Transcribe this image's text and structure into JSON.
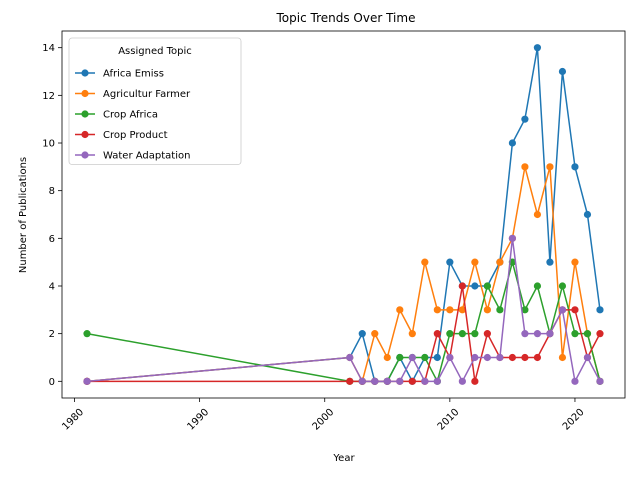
{
  "chart_data": {
    "type": "line",
    "title": "Topic Trends Over Time",
    "xlabel": "Year",
    "ylabel": "Number of Publications",
    "xlim": [
      1979,
      2024
    ],
    "ylim": [
      -0.7,
      14.7
    ],
    "xticks": [
      1980,
      1990,
      2000,
      2010,
      2020
    ],
    "yticks": [
      0,
      2,
      4,
      6,
      8,
      10,
      12,
      14
    ],
    "grid": false,
    "legend": {
      "title": "Assigned Topic",
      "position": "top-left"
    },
    "x": [
      1981,
      2002,
      2003,
      2004,
      2005,
      2006,
      2007,
      2008,
      2009,
      2010,
      2011,
      2012,
      2013,
      2014,
      2015,
      2016,
      2017,
      2018,
      2019,
      2020,
      2021,
      2022
    ],
    "series": [
      {
        "name": "Africa Emiss",
        "color": "#1f77b4",
        "values": [
          0,
          1,
          2,
          0,
          0,
          1,
          0,
          1,
          1,
          5,
          4,
          4,
          4,
          5,
          10,
          11,
          14,
          5,
          13,
          9,
          7,
          3
        ]
      },
      {
        "name": "Agricultur Farmer",
        "color": "#ff7f0e",
        "values": [
          0,
          1,
          0,
          2,
          1,
          3,
          2,
          5,
          3,
          3,
          3,
          5,
          3,
          5,
          6,
          9,
          7,
          9,
          1,
          5,
          2,
          0
        ]
      },
      {
        "name": "Crop Africa",
        "color": "#2ca02c",
        "values": [
          2,
          0,
          0,
          0,
          0,
          1,
          1,
          1,
          0,
          2,
          2,
          2,
          4,
          3,
          5,
          3,
          4,
          2,
          4,
          2,
          2,
          0
        ]
      },
      {
        "name": "Crop Product",
        "color": "#d62728",
        "values": [
          0,
          0,
          0,
          0,
          0,
          0,
          0,
          0,
          2,
          1,
          4,
          0,
          2,
          1,
          1,
          1,
          1,
          2,
          3,
          3,
          1,
          2
        ]
      },
      {
        "name": "Water Adaptation",
        "color": "#9467bd",
        "values": [
          0,
          1,
          0,
          0,
          0,
          0,
          1,
          0,
          0,
          1,
          0,
          1,
          1,
          1,
          6,
          2,
          2,
          2,
          3,
          0,
          1,
          0
        ]
      }
    ]
  }
}
